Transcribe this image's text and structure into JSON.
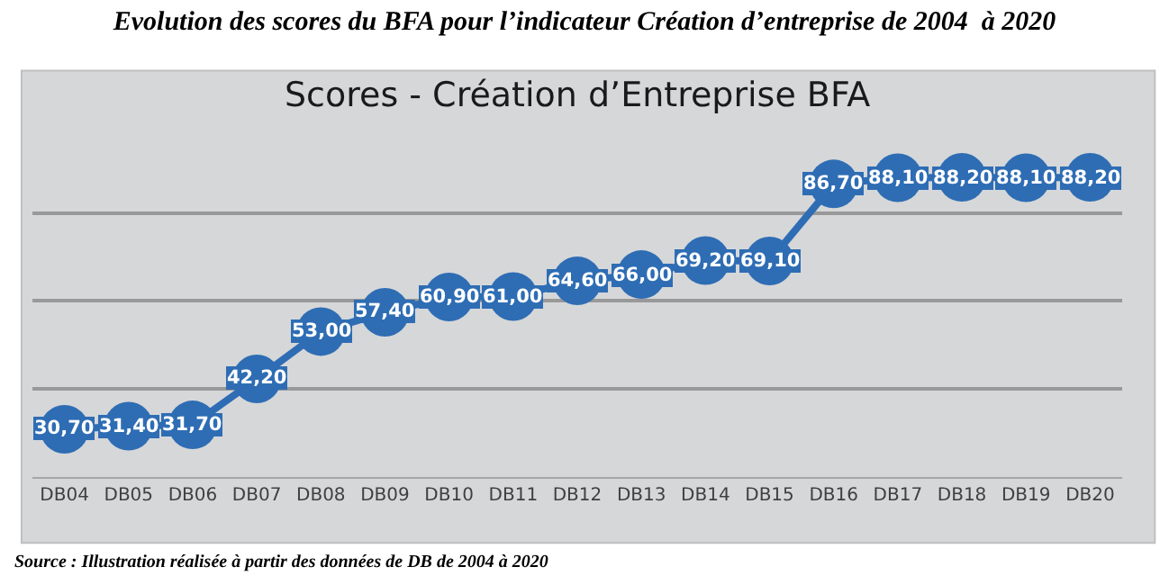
{
  "chart_data": {
    "type": "line",
    "title": "Evolution des scores du BFA pour l’indicateur Création d’entreprise de 2004  à 2020",
    "subtitle": "Scores - Création d’Entreprise BFA",
    "categories": [
      "DB04",
      "DB05",
      "DB06",
      "DB07",
      "DB08",
      "DB09",
      "DB10",
      "DB11",
      "DB12",
      "DB13",
      "DB14",
      "DB15",
      "DB16",
      "DB17",
      "DB18",
      "DB19",
      "DB20"
    ],
    "series": [
      {
        "color": "#2e6db4",
        "values": [
          30.7,
          31.4,
          31.7,
          42.2,
          53.0,
          57.4,
          60.9,
          61.0,
          64.6,
          66.0,
          69.2,
          69.1,
          86.7,
          88.1,
          88.2,
          88.1,
          88.2
        ],
        "value_labels": [
          "30,70",
          "31,40",
          "31,70",
          "42,20",
          "53,00",
          "57,40",
          "60,90",
          "61,00",
          "64,60",
          "66,00",
          "69,20",
          "69,10",
          "86,70",
          "88,10",
          "88,20",
          "88,10",
          "88,20"
        ]
      }
    ],
    "yticks": [
      {
        "value": 20,
        "label": null
      },
      {
        "value": 40,
        "label": null
      },
      {
        "value": 60,
        "label": null
      },
      {
        "value": 80,
        "label": null
      }
    ],
    "tick_labels": "x",
    "grid": "y",
    "marker": "circle",
    "line_style": "solid",
    "legend": false,
    "annotations": [
      "Source : Illustration réalisée à partir des données de DB de 2004 à 2020"
    ]
  }
}
